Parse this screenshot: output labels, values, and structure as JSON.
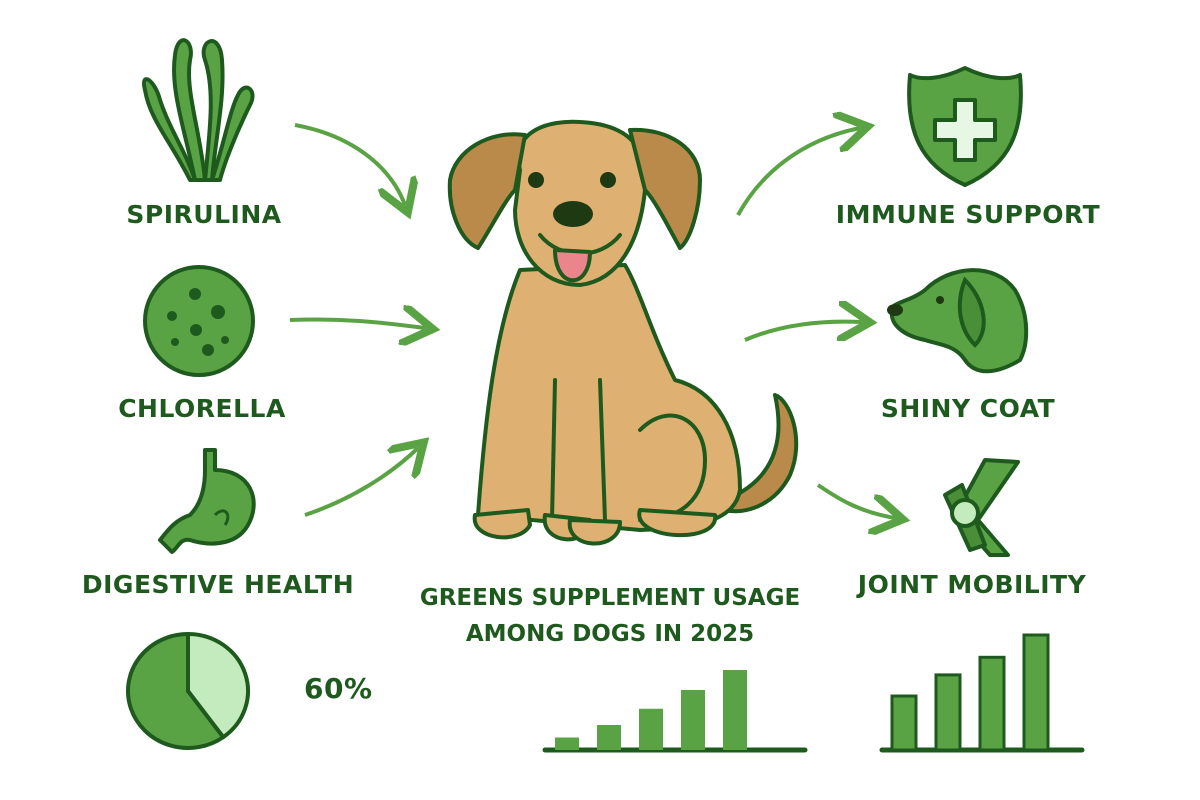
{
  "title": {
    "line1": "GREENS SUPPLEMENT USAGE",
    "line2": "AMONG DOGS IN 2025"
  },
  "inputs": [
    {
      "label": "SPIRULINA",
      "icon": "seaweed-icon"
    },
    {
      "label": "CHLORELLA",
      "icon": "chlorella-cell-icon"
    },
    {
      "label": "DIGESTIVE HEALTH",
      "icon": "stomach-icon"
    }
  ],
  "benefits": [
    {
      "label": "IMMUNE SUPPORT",
      "icon": "shield-cross-icon"
    },
    {
      "label": "SHINY COAT",
      "icon": "dog-head-icon"
    },
    {
      "label": "JOINT MOBILITY",
      "icon": "knee-joint-icon"
    }
  ],
  "colors": {
    "dark_green": "#1e5a1e",
    "green": "#5aa345",
    "light_green": "#c3ebbd",
    "dog": "#deb071",
    "ear": "#b98a4a",
    "arrow": "#5aa345"
  },
  "chart_data": [
    {
      "type": "pie",
      "values": [
        60,
        40
      ],
      "labels": [
        "60%",
        ""
      ],
      "data_label": "60%"
    },
    {
      "type": "bar",
      "values": [
        1,
        2,
        3.3,
        4.8,
        6.4
      ]
    },
    {
      "type": "bar",
      "values": [
        4.6,
        6.4,
        7.9,
        9.8
      ]
    }
  ]
}
